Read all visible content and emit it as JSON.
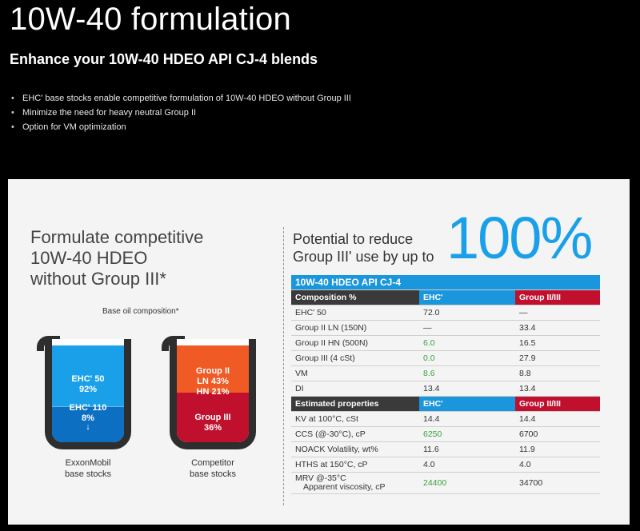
{
  "header": {
    "title": "10W-40 formulation",
    "subtitle": "Enhance your 10W-40 HDEO API CJ-4 blends",
    "bullets": [
      "EHC' base stocks enable competitive formulation of 10W-40 HDEO without Group III",
      "Minimize the need for heavy neutral Group II",
      "Option for VM optimization"
    ]
  },
  "left": {
    "heading_lines": [
      "Formulate competitive",
      "10W-40 HDEO",
      "without Group III*"
    ],
    "caption": "Base oil composition*",
    "beaker1": {
      "top_label": "EHC' 50",
      "top_value": "92%",
      "bottom_label": "EHC' 110",
      "bottom_value": "8%",
      "arrow": "↓",
      "label_lines": [
        "ExxonMobil",
        "base stocks"
      ],
      "fraction_top": 0.92
    },
    "beaker2": {
      "top_label": "Group II",
      "top_line2": "LN 43%",
      "top_line3": "HN 21%",
      "bottom_label": "Group III",
      "bottom_value": "36%",
      "label_lines": [
        "Competitor",
        "base stocks"
      ],
      "fraction_top": 0.64
    }
  },
  "right": {
    "potential_lines": [
      "Potential to reduce",
      "Group III' use by up to"
    ],
    "big_number": "100%",
    "table": {
      "title": "10W-40 HDEO API CJ-4",
      "composition_headers": [
        "Composition %",
        "EHC'",
        "Group II/III"
      ],
      "composition_rows": [
        {
          "label": "EHC' 50",
          "ehc": "72.0",
          "g": "—",
          "hl": false
        },
        {
          "label": "Group II LN (150N)",
          "ehc": "—",
          "g": "33.4",
          "hl": false
        },
        {
          "label": "Group II HN (500N)",
          "ehc": "6.0",
          "g": "16.5",
          "hl": true
        },
        {
          "label": "Group III (4 cSt)",
          "ehc": "0.0",
          "g": "27.9",
          "hl": true
        },
        {
          "label": "VM",
          "ehc": "8.6",
          "g": "8.8",
          "hl": true
        },
        {
          "label": "DI",
          "ehc": "13.4",
          "g": "13.4",
          "hl": false
        }
      ],
      "property_headers": [
        "Estimated properties",
        "EHC'",
        "Group II/III"
      ],
      "property_rows": [
        {
          "label": "KV at 100°C, cSt",
          "ehc": "14.4",
          "g": "14.4",
          "hl": false
        },
        {
          "label": "CCS (@-30°C), cP",
          "ehc": "6250",
          "g": "6700",
          "hl": true
        },
        {
          "label": "NOACK Volatility, wt%",
          "ehc": "11.6",
          "g": "11.9",
          "hl": false
        },
        {
          "label": "HTHS at 150°C, cP",
          "ehc": "4.0",
          "g": "4.0",
          "hl": false
        }
      ],
      "mrv_row": {
        "label1": "MRV @-35°C",
        "label2": "Apparent viscosity, cP",
        "ehc": "24400",
        "g": "34700"
      }
    }
  },
  "colors": {
    "blue": "#1aa0e8",
    "red": "#c0102e",
    "orange": "#f05a24",
    "green": "#3aa13a"
  }
}
